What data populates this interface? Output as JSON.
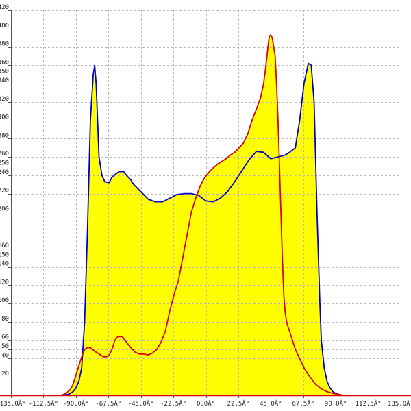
{
  "chart_data": {
    "type": "area",
    "title": "",
    "xlabel": "",
    "ylabel": "",
    "xlim": [
      -135,
      135
    ],
    "ylim": [
      0,
      420
    ],
    "grid": true,
    "x_ticks": [
      -135,
      -112.5,
      -90,
      -67.5,
      -45,
      -22.5,
      0,
      22.5,
      45,
      67.5,
      90,
      112.5,
      135
    ],
    "x_tick_labels": [
      "-135.0Â°",
      "-112.5Â°",
      "-90.0Â°",
      "-67.5Â°",
      "-45.0Â°",
      "-22.5Â°",
      "0.0Â°",
      "22.5Â°",
      "45.0Â°",
      "67.5Â°",
      "90.0Â°",
      "112.5Â°",
      "135.0Â°"
    ],
    "y_ticks": [
      20,
      40,
      50,
      60,
      80,
      100,
      120,
      140,
      150,
      160,
      200,
      220,
      240,
      250,
      260,
      280,
      300,
      320,
      340,
      350,
      360,
      380,
      400,
      420
    ],
    "y_tick_labels": [
      "20",
      "40",
      "50",
      "60",
      "80",
      "100",
      "120",
      "140",
      "150",
      "160",
      "200",
      "220",
      "240",
      "250",
      "260",
      "280",
      "300",
      "320",
      "340",
      "350",
      "360",
      "380",
      "400",
      "420"
    ],
    "fill_color": "#ffff00",
    "series": [
      {
        "color": "#0000cc",
        "x": [
          -100,
          -95,
          -92,
          -90,
          -88,
          -86,
          -84,
          -82,
          -80,
          -78,
          -77,
          -76,
          -75,
          -74,
          -73,
          -72,
          -70,
          -67,
          -65,
          -62,
          -60,
          -57,
          -55,
          -52,
          -50,
          -45,
          -40,
          -35,
          -30,
          -25,
          -20,
          -15,
          -10,
          -5,
          0,
          5,
          10,
          15,
          20,
          25,
          30,
          35,
          40,
          45,
          50,
          55,
          58,
          62,
          65,
          68,
          71,
          73,
          75,
          76,
          77,
          78,
          79,
          80,
          82,
          84,
          86,
          88,
          90,
          92,
          95,
          100,
          105
        ],
        "y": [
          0,
          1,
          4,
          8,
          15,
          30,
          80,
          180,
          300,
          350,
          360,
          340,
          300,
          260,
          250,
          240,
          233,
          232,
          238,
          242,
          244,
          244,
          240,
          235,
          230,
          222,
          214,
          211,
          211,
          215,
          219,
          220,
          220,
          218,
          212,
          211,
          215,
          222,
          233,
          245,
          257,
          266,
          265,
          258,
          260,
          262,
          265,
          270,
          300,
          340,
          362,
          360,
          320,
          260,
          200,
          150,
          100,
          60,
          30,
          15,
          8,
          4,
          2,
          1,
          0,
          0,
          0
        ]
      },
      {
        "color": "#dd0000",
        "x": [
          -100,
          -97,
          -94,
          -92,
          -90,
          -88,
          -86,
          -84,
          -82,
          -80,
          -77,
          -74,
          -71,
          -69,
          -67,
          -65,
          -63,
          -61,
          -58,
          -55,
          -52,
          -49,
          -46,
          -43,
          -40,
          -37,
          -34,
          -31,
          -28,
          -25,
          -22,
          -19,
          -16,
          -13,
          -10,
          -7,
          -4,
          -1,
          2,
          5,
          8,
          11,
          14,
          17,
          20,
          23,
          26,
          29,
          32,
          35,
          38,
          40,
          41,
          42,
          43,
          44,
          45,
          46,
          47,
          48,
          49,
          50,
          51,
          52,
          53,
          54,
          55,
          56,
          57,
          58,
          60,
          62,
          65,
          68,
          72,
          76,
          80,
          84,
          88,
          92,
          95,
          100,
          105,
          110
        ],
        "y": [
          0,
          2,
          6,
          12,
          22,
          32,
          42,
          50,
          52,
          52,
          48,
          45,
          42,
          42,
          44,
          50,
          60,
          64,
          64,
          58,
          52,
          47,
          45,
          45,
          44,
          46,
          50,
          58,
          70,
          92,
          110,
          125,
          150,
          175,
          200,
          215,
          228,
          237,
          243,
          248,
          252,
          255,
          258,
          262,
          265,
          270,
          275,
          285,
          300,
          312,
          325,
          340,
          352,
          365,
          380,
          392,
          393,
          390,
          380,
          370,
          340,
          300,
          250,
          200,
          150,
          110,
          90,
          80,
          74,
          70,
          60,
          50,
          40,
          30,
          20,
          12,
          7,
          4,
          2,
          1,
          0,
          0,
          0,
          0
        ]
      }
    ]
  }
}
